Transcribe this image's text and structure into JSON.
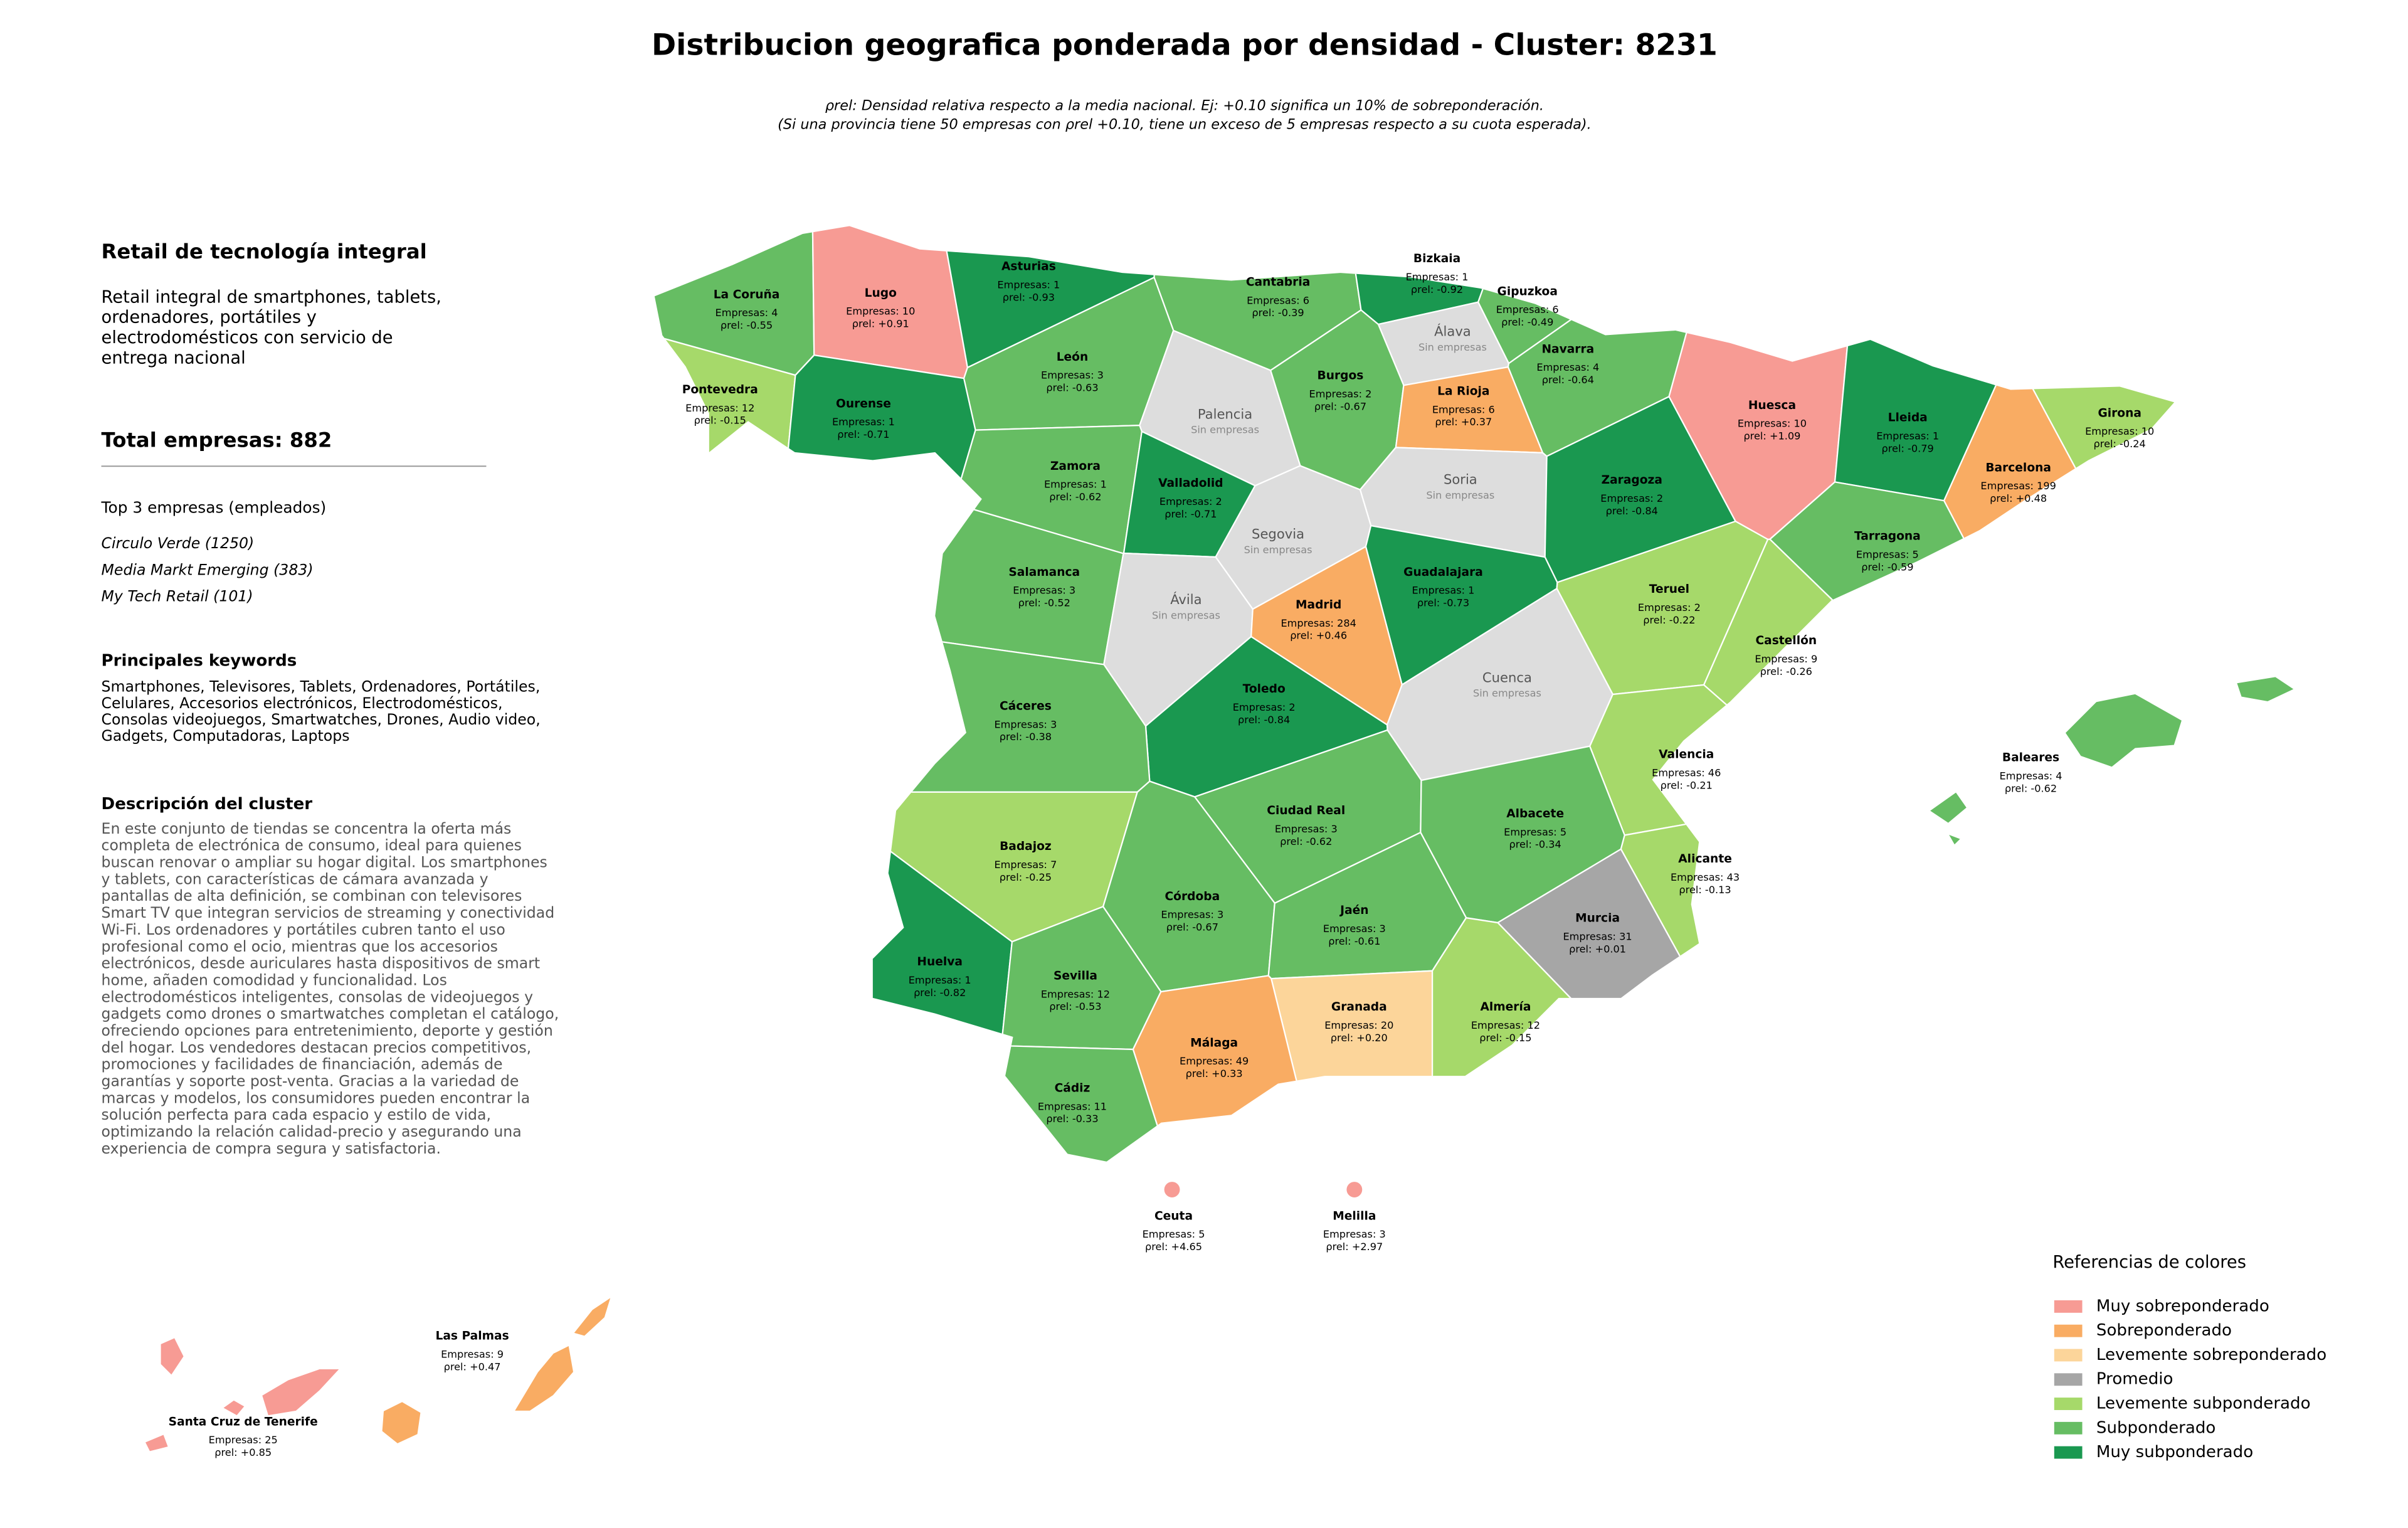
{
  "header": {
    "title": "Distribucion geografica ponderada por densidad - Cluster: 8231",
    "subtitle_lines": [
      "ρrel: Densidad relativa respecto a la media nacional. Ej: +0.10 significa un 10% de sobreponderación.",
      "(Si una provincia tiene 50 empresas con ρrel +0.10, tiene un exceso de 5 empresas respecto a su cuota esperada)."
    ]
  },
  "panel": {
    "title": "Retail de tecnología integral",
    "summary_lines": [
      "Retail integral de smartphones, tablets,",
      "ordenadores, portátiles y",
      "electrodomésticos con servicio de",
      "entrega nacional"
    ],
    "total": "Total empresas: 882",
    "top_heading": "Top 3 empresas (empleados)",
    "top": [
      "Circulo Verde (1250)",
      "Media Markt Emerging (383)",
      "My Tech Retail (101)"
    ],
    "keywords_heading": "Principales keywords",
    "keywords_lines": [
      "Smartphones, Televisores, Tablets, Ordenadores, Portátiles,",
      "Celulares, Accesorios electrónicos, Electrodomésticos,",
      "Consolas videojuegos, Smartwatches, Drones, Audio video,",
      "Gadgets, Computadoras, Laptops"
    ],
    "description_heading": "Descripción del cluster",
    "description_lines": [
      "En este conjunto de tiendas se concentra la oferta más",
      "completa de electrónica de consumo, ideal para quienes",
      "buscan renovar o ampliar su hogar digital. Los smartphones",
      "y tablets, con características de cámara avanzada y",
      "pantallas de alta definición, se combinan con televisores",
      "Smart TV que integran servicios de streaming y conectividad",
      "Wi-Fi. Los ordenadores y portátiles cubren tanto el uso",
      "profesional como el ocio, mientras que los accesorios",
      "electrónicos, desde auriculares hasta dispositivos de smart",
      "home, añaden comodidad y funcionalidad. Los",
      "electrodomésticos inteligentes, consolas de videojuegos y",
      "gadgets como drones o smartwatches completan el catálogo,",
      "ofreciendo opciones para entretenimiento, deporte y gestión",
      "del hogar. Los vendedores destacan precios competitivos,",
      "promociones y facilidades de financiación, además de",
      "garantías y soporte post-venta. Gracias a la variedad de",
      "marcas y modelos, los consumidores pueden encontrar la",
      "solución perfecta para cada espacio y estilo de vida,",
      "optimizando la relación calidad-precio y asegurando una",
      "experiencia de compra segura y satisfactoria."
    ]
  },
  "provinces": [
    {
      "name": "La Coruña",
      "empresas": "Empresas: 4",
      "rho": "ρrel: -0.55",
      "color": "#66bd63"
    },
    {
      "name": "Lugo",
      "empresas": "Empresas: 10",
      "rho": "ρrel: +0.91",
      "color": "#f79b94"
    },
    {
      "name": "Asturias",
      "empresas": "Empresas: 1",
      "rho": "ρrel: -0.93",
      "color": "#1a9850"
    },
    {
      "name": "Cantabria",
      "empresas": "Empresas: 6",
      "rho": "ρrel: -0.39",
      "color": "#66bd63"
    },
    {
      "name": "Bizkaia",
      "empresas": "Empresas: 1",
      "rho": "ρrel: -0.92",
      "color": "#1a9850"
    },
    {
      "name": "Gipuzkoa",
      "empresas": "Empresas: 6",
      "rho": "ρrel: -0.49",
      "color": "#66bd63"
    },
    {
      "name": "Álava",
      "status": "Sin empresas",
      "color": "#dddddd"
    },
    {
      "name": "Navarra",
      "empresas": "Empresas: 4",
      "rho": "ρrel: -0.64",
      "color": "#66bd63"
    },
    {
      "name": "Pontevedra",
      "empresas": "Empresas: 12",
      "rho": "ρrel: -0.15",
      "color": "#a6d96a"
    },
    {
      "name": "Ourense",
      "empresas": "Empresas: 1",
      "rho": "ρrel: -0.71",
      "color": "#1a9850"
    },
    {
      "name": "León",
      "empresas": "Empresas: 3",
      "rho": "ρrel: -0.63",
      "color": "#66bd63"
    },
    {
      "name": "Palencia",
      "status": "Sin empresas",
      "color": "#dddddd"
    },
    {
      "name": "Burgos",
      "empresas": "Empresas: 2",
      "rho": "ρrel: -0.67",
      "color": "#66bd63"
    },
    {
      "name": "La Rioja",
      "empresas": "Empresas: 6",
      "rho": "ρrel: +0.37",
      "color": "#f9ac63"
    },
    {
      "name": "Huesca",
      "empresas": "Empresas: 10",
      "rho": "ρrel: +1.09",
      "color": "#f79b94"
    },
    {
      "name": "Lleida",
      "empresas": "Empresas: 1",
      "rho": "ρrel: -0.79",
      "color": "#1a9850"
    },
    {
      "name": "Girona",
      "empresas": "Empresas: 10",
      "rho": "ρrel: -0.24",
      "color": "#a6d96a"
    },
    {
      "name": "Barcelona",
      "empresas": "Empresas: 199",
      "rho": "ρrel: +0.48",
      "color": "#f9ac63"
    },
    {
      "name": "Zamora",
      "empresas": "Empresas: 1",
      "rho": "ρrel: -0.62",
      "color": "#66bd63"
    },
    {
      "name": "Valladolid",
      "empresas": "Empresas: 2",
      "rho": "ρrel: -0.71",
      "color": "#1a9850"
    },
    {
      "name": "Soria",
      "status": "Sin empresas",
      "color": "#dddddd"
    },
    {
      "name": "Zaragoza",
      "empresas": "Empresas: 2",
      "rho": "ρrel: -0.84",
      "color": "#1a9850"
    },
    {
      "name": "Tarragona",
      "empresas": "Empresas: 5",
      "rho": "ρrel: -0.59",
      "color": "#66bd63"
    },
    {
      "name": "Segovia",
      "status": "Sin empresas",
      "color": "#dddddd"
    },
    {
      "name": "Salamanca",
      "empresas": "Empresas: 3",
      "rho": "ρrel: -0.52",
      "color": "#66bd63"
    },
    {
      "name": "Guadalajara",
      "empresas": "Empresas: 1",
      "rho": "ρrel: -0.73",
      "color": "#1a9850"
    },
    {
      "name": "Ávila",
      "status": "Sin empresas",
      "color": "#dddddd"
    },
    {
      "name": "Madrid",
      "empresas": "Empresas: 284",
      "rho": "ρrel: +0.46",
      "color": "#f9ac63"
    },
    {
      "name": "Teruel",
      "empresas": "Empresas: 2",
      "rho": "ρrel: -0.22",
      "color": "#a6d96a"
    },
    {
      "name": "Castellón",
      "empresas": "Empresas: 9",
      "rho": "ρrel: -0.26",
      "color": "#a6d96a"
    },
    {
      "name": "Cuenca",
      "status": "Sin empresas",
      "color": "#dddddd"
    },
    {
      "name": "Toledo",
      "empresas": "Empresas: 2",
      "rho": "ρrel: -0.84",
      "color": "#1a9850"
    },
    {
      "name": "Cáceres",
      "empresas": "Empresas: 3",
      "rho": "ρrel: -0.38",
      "color": "#66bd63"
    },
    {
      "name": "Valencia",
      "empresas": "Empresas: 46",
      "rho": "ρrel: -0.21",
      "color": "#a6d96a"
    },
    {
      "name": "Baleares",
      "empresas": "Empresas: 4",
      "rho": "ρrel: -0.62",
      "color": "#66bd63"
    },
    {
      "name": "Ciudad Real",
      "empresas": "Empresas: 3",
      "rho": "ρrel: -0.62",
      "color": "#66bd63"
    },
    {
      "name": "Albacete",
      "empresas": "Empresas: 5",
      "rho": "ρrel: -0.34",
      "color": "#66bd63"
    },
    {
      "name": "Badajoz",
      "empresas": "Empresas: 7",
      "rho": "ρrel: -0.25",
      "color": "#a6d96a"
    },
    {
      "name": "Alicante",
      "empresas": "Empresas: 43",
      "rho": "ρrel: -0.13",
      "color": "#a6d96a"
    },
    {
      "name": "Córdoba",
      "empresas": "Empresas: 3",
      "rho": "ρrel: -0.67",
      "color": "#66bd63"
    },
    {
      "name": "Jaén",
      "empresas": "Empresas: 3",
      "rho": "ρrel: -0.61",
      "color": "#66bd63"
    },
    {
      "name": "Murcia",
      "empresas": "Empresas: 31",
      "rho": "ρrel: +0.01",
      "color": "#a6a6a6"
    },
    {
      "name": "Huelva",
      "empresas": "Empresas: 1",
      "rho": "ρrel: -0.82",
      "color": "#1a9850"
    },
    {
      "name": "Sevilla",
      "empresas": "Empresas: 12",
      "rho": "ρrel: -0.53",
      "color": "#66bd63"
    },
    {
      "name": "Granada",
      "empresas": "Empresas: 20",
      "rho": "ρrel: +0.20",
      "color": "#fcd59a"
    },
    {
      "name": "Almería",
      "empresas": "Empresas: 12",
      "rho": "ρrel: -0.15",
      "color": "#a6d96a"
    },
    {
      "name": "Málaga",
      "empresas": "Empresas: 49",
      "rho": "ρrel: +0.33",
      "color": "#f9ac63"
    },
    {
      "name": "Cádiz",
      "empresas": "Empresas: 11",
      "rho": "ρrel: -0.33",
      "color": "#66bd63"
    },
    {
      "name": "Ceuta",
      "empresas": "Empresas: 5",
      "rho": "ρrel: +4.65",
      "color": "#f79b94"
    },
    {
      "name": "Melilla",
      "empresas": "Empresas: 3",
      "rho": "ρrel: +2.97",
      "color": "#f79b94"
    },
    {
      "name": "Las Palmas",
      "empresas": "Empresas: 9",
      "rho": "ρrel: +0.47",
      "color": "#f9ac63"
    },
    {
      "name": "Santa Cruz de Tenerife",
      "empresas": "Empresas: 25",
      "rho": "ρrel: +0.85",
      "color": "#f79b94"
    }
  ],
  "legend": {
    "title": "Referencias de colores",
    "items": [
      {
        "name": "Muy sobreponderado",
        "color": "#f79b94"
      },
      {
        "name": "Sobreponderado",
        "color": "#f9ac63"
      },
      {
        "name": "Levemente sobreponderado",
        "color": "#fcd59a"
      },
      {
        "name": "Promedio",
        "color": "#a6a6a6"
      },
      {
        "name": "Levemente subponderado",
        "color": "#a6d96a"
      },
      {
        "name": "Subponderado",
        "color": "#66bd63"
      },
      {
        "name": "Muy subponderado",
        "color": "#1a9850"
      }
    ]
  }
}
